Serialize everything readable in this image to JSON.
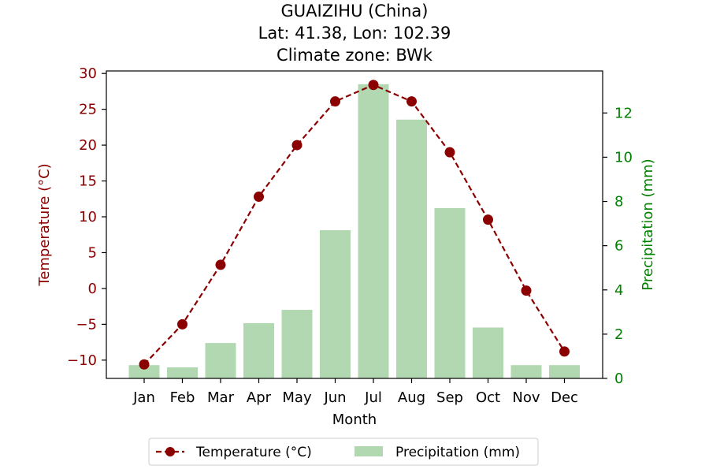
{
  "colors": {
    "temperature": "#8b0000",
    "precipitation_bar": "#b2d8b2",
    "precipitation_axis": "#008000",
    "axis": "#000000"
  },
  "chart_data": {
    "type": "bar",
    "title_lines": [
      "GUAIZIHU (China)",
      "Lat: 41.38, Lon: 102.39",
      "Climate zone: BWk"
    ],
    "xlabel": "Month",
    "categories": [
      "Jan",
      "Feb",
      "Mar",
      "Apr",
      "May",
      "Jun",
      "Jul",
      "Aug",
      "Sep",
      "Oct",
      "Nov",
      "Dec"
    ],
    "series": [
      {
        "name": "Temperature (°C)",
        "type": "line",
        "style": "dashed with circle markers",
        "axis": "left",
        "values": [
          -10.6,
          -5.0,
          3.3,
          12.8,
          20.0,
          26.1,
          28.4,
          26.1,
          19.0,
          9.6,
          -0.3,
          -8.8
        ]
      },
      {
        "name": "Precipitation (mm)",
        "type": "bar",
        "axis": "right",
        "values": [
          0.6,
          0.5,
          1.6,
          2.5,
          3.1,
          6.7,
          13.3,
          11.7,
          7.7,
          2.3,
          0.6,
          0.6
        ]
      }
    ],
    "y_left": {
      "label": "Temperature (°C)",
      "ticks": [
        "−10",
        "−5",
        "0",
        "5",
        "10",
        "15",
        "20",
        "25",
        "30"
      ],
      "tick_values": [
        -10,
        -5,
        0,
        5,
        10,
        15,
        20,
        25,
        30
      ],
      "range": [
        -12.55,
        30.35
      ]
    },
    "y_right": {
      "label": "Precipitation (mm)",
      "ticks": [
        "0",
        "2",
        "4",
        "6",
        "8",
        "10",
        "12"
      ],
      "tick_values": [
        0,
        2,
        4,
        6,
        8,
        10,
        12
      ],
      "range": [
        0,
        13.9
      ]
    },
    "legend": {
      "placement": "bottom-center",
      "entries": [
        "Temperature (°C)",
        "Precipitation (mm)"
      ]
    },
    "grid": false
  }
}
